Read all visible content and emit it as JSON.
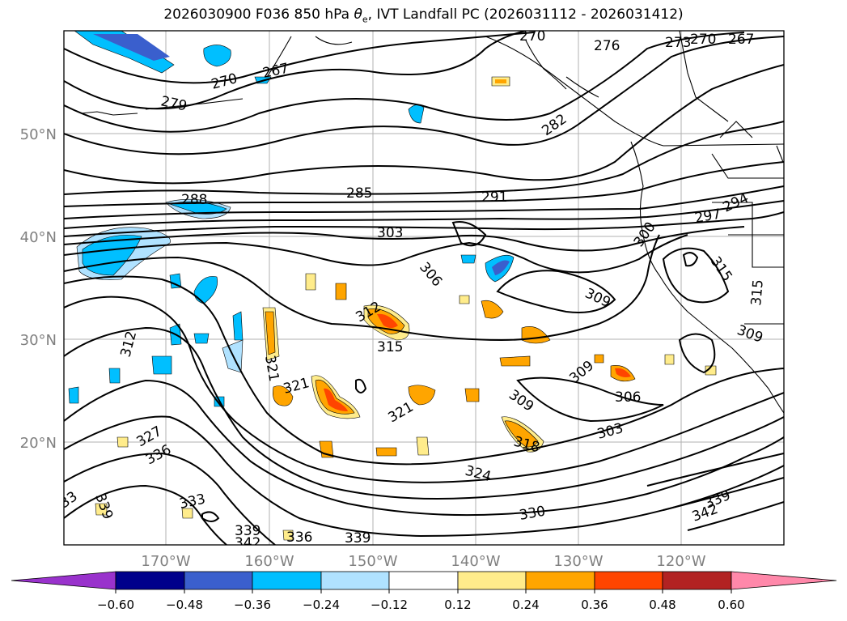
{
  "title": {
    "prefix": "2026030900 F036 850 hPa ",
    "symbol": "θ",
    "subscript": "e",
    "suffix": ", IVT Landfall PC (2026031112 - 2026031412)"
  },
  "map": {
    "lon_ticks": [
      "170°W",
      "160°W",
      "150°W",
      "140°W",
      "130°W",
      "120°W"
    ],
    "lat_ticks": [
      "50°N",
      "40°N",
      "30°N",
      "20°N"
    ],
    "gridline_color": "#b0b0b0",
    "tick_label_color": "#808080",
    "contour_labels": [
      "270",
      "276",
      "273",
      "270",
      "267",
      "270",
      "267",
      "279",
      "282",
      "285",
      "288",
      "291",
      "294",
      "297",
      "303",
      "306",
      "309",
      "312",
      "312",
      "315",
      "315",
      "315",
      "318",
      "321",
      "321",
      "321",
      "324",
      "327",
      "330",
      "333",
      "336",
      "336",
      "339",
      "339",
      "339",
      "339",
      "342",
      "342",
      "309",
      "309",
      "306",
      "303",
      "309",
      "33",
      "300"
    ]
  },
  "colorbar": {
    "tick_labels": [
      "−0.60",
      "−0.48",
      "−0.36",
      "−0.24",
      "−0.12",
      "0.12",
      "0.24",
      "0.36",
      "0.48",
      "0.60"
    ],
    "colors": [
      "#9932cc",
      "#00008b",
      "#3a5fcd",
      "#00bfff",
      "#b0e2ff",
      "#ffffff",
      "#ffec8b",
      "#ffa500",
      "#ff4500",
      "#b22222",
      "#ff88aa"
    ]
  }
}
